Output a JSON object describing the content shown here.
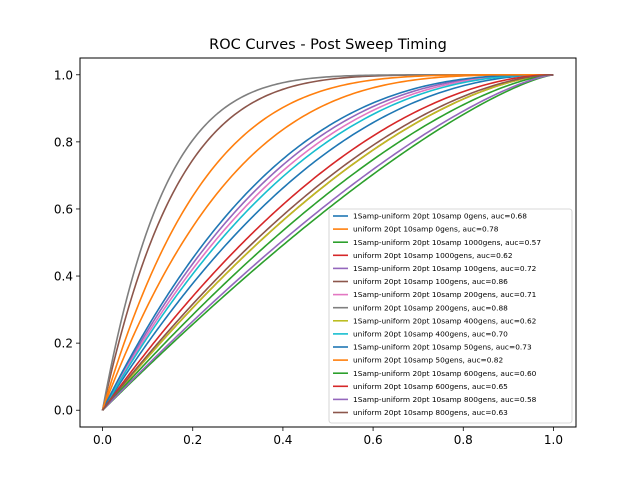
{
  "chart_data": {
    "type": "line",
    "title": "ROC Curves - Post Sweep Timing",
    "xlabel": "",
    "ylabel": "",
    "xlim": [
      -0.05,
      1.05
    ],
    "ylim": [
      -0.05,
      1.05
    ],
    "xticks": [
      "0.0",
      "0.2",
      "0.4",
      "0.6",
      "0.8",
      "1.0"
    ],
    "yticks": [
      "0.0",
      "0.2",
      "0.4",
      "0.6",
      "0.8",
      "1.0"
    ],
    "grid": false,
    "legend_position": "lower-right",
    "series": [
      {
        "name": "1Samp-uniform 20pt 10samp 0gens, auc=0.68",
        "color": "#1f77b4",
        "auc": 0.68
      },
      {
        "name": "uniform 20pt 10samp 0gens, auc=0.78",
        "color": "#ff7f0e",
        "auc": 0.78
      },
      {
        "name": "1Samp-uniform 20pt 10samp 1000gens, auc=0.57",
        "color": "#2ca02c",
        "auc": 0.57
      },
      {
        "name": "uniform 20pt 10samp 1000gens, auc=0.62",
        "color": "#d62728",
        "auc": 0.62
      },
      {
        "name": "1Samp-uniform 20pt 10samp 100gens, auc=0.72",
        "color": "#9467bd",
        "auc": 0.72
      },
      {
        "name": "uniform 20pt 10samp 100gens, auc=0.86",
        "color": "#8c564b",
        "auc": 0.86
      },
      {
        "name": "1Samp-uniform 20pt 10samp 200gens, auc=0.71",
        "color": "#e377c2",
        "auc": 0.71
      },
      {
        "name": "uniform 20pt 10samp 200gens, auc=0.88",
        "color": "#7f7f7f",
        "auc": 0.88
      },
      {
        "name": "1Samp-uniform 20pt 10samp 400gens, auc=0.62",
        "color": "#bcbd22",
        "auc": 0.62
      },
      {
        "name": "uniform 20pt 10samp 400gens, auc=0.70",
        "color": "#17becf",
        "auc": 0.7
      },
      {
        "name": "1Samp-uniform 20pt 10samp 50gens, auc=0.73",
        "color": "#1f77b4",
        "auc": 0.73
      },
      {
        "name": "uniform 20pt 10samp 50gens, auc=0.82",
        "color": "#ff7f0e",
        "auc": 0.82
      },
      {
        "name": "1Samp-uniform 20pt 10samp 600gens, auc=0.60",
        "color": "#2ca02c",
        "auc": 0.6
      },
      {
        "name": "uniform 20pt 10samp 600gens, auc=0.65",
        "color": "#d62728",
        "auc": 0.65
      },
      {
        "name": "1Samp-uniform 20pt 10samp 800gens, auc=0.58",
        "color": "#9467bd",
        "auc": 0.58
      },
      {
        "name": "uniform 20pt 10samp 800gens, auc=0.63",
        "color": "#8c564b",
        "auc": 0.63
      }
    ]
  }
}
